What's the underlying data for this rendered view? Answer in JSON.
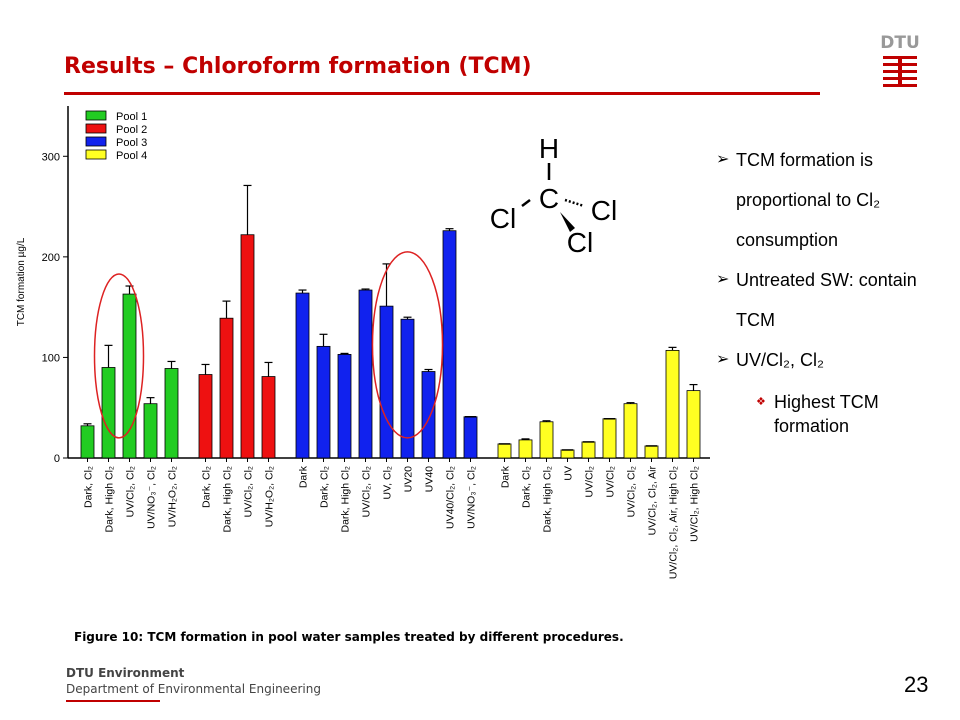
{
  "slide": {
    "title": "Results – Chloroform formation (TCM)",
    "caption": "Figure 10: TCM formation in pool water samples treated by different procedures.",
    "footer_org": "DTU Environment",
    "footer_dept": "Department of Environmental Engineering",
    "page_number": "23",
    "logo_text": "DTU",
    "accent_color": "#c00000"
  },
  "bullets": [
    {
      "text": "TCM formation is proportional to Cl₂ consumption"
    },
    {
      "text": "Untreated SW: contain TCM"
    },
    {
      "text": "UV/Cl₂, Cl₂"
    }
  ],
  "sub_bullet": "Highest TCM formation",
  "molecule": {
    "h": "H",
    "c": "C",
    "cl1": "Cl",
    "cl2": "Cl",
    "cl3": "Cl"
  },
  "chart_data": {
    "type": "bar",
    "ylabel": "TCM formation µg/L",
    "ylim": [
      0,
      350
    ],
    "yticks": [
      0,
      100,
      200,
      300
    ],
    "legend": [
      {
        "name": "Pool 1",
        "color": "#22cc22"
      },
      {
        "name": "Pool 2",
        "color": "#ee1111"
      },
      {
        "name": "Pool 3",
        "color": "#1122ee"
      },
      {
        "name": "Pool 4",
        "color": "#ffff22"
      }
    ],
    "groups": [
      {
        "pool": "Pool 1",
        "bars": [
          {
            "label": "Dark, Cl2",
            "value": 32,
            "err": 2
          },
          {
            "label": "Dark, High Cl2",
            "value": 90,
            "err": 22
          },
          {
            "label": "UV/Cl2, Cl2",
            "value": 163,
            "err": 8
          },
          {
            "label": "UV/NO3-, Cl2",
            "value": 54,
            "err": 6
          },
          {
            "label": "UV/H2O2, Cl2",
            "value": 89,
            "err": 7
          }
        ]
      },
      {
        "pool": "Pool 2",
        "bars": [
          {
            "label": "Dark, Cl2",
            "value": 83,
            "err": 10
          },
          {
            "label": "Dark, High Cl2",
            "value": 139,
            "err": 17
          },
          {
            "label": "UV/Cl2, Cl2",
            "value": 222,
            "err": 49
          },
          {
            "label": "UV/H2O2, Cl2",
            "value": 81,
            "err": 14
          }
        ]
      },
      {
        "pool": "Pool 3",
        "bars": [
          {
            "label": "Dark",
            "value": 164,
            "err": 3
          },
          {
            "label": "Dark, Cl2",
            "value": 111,
            "err": 12
          },
          {
            "label": "Dark, High Cl2",
            "value": 103,
            "err": 1
          },
          {
            "label": "UV/Cl2, Cl2",
            "value": 167,
            "err": 1
          },
          {
            "label": "UV, Cl2",
            "value": 151,
            "err": 42
          },
          {
            "label": "UV20",
            "value": 138,
            "err": 2
          },
          {
            "label": "UV40",
            "value": 86,
            "err": 2
          },
          {
            "label": "UV40/Cl2, Cl2",
            "value": 226,
            "err": 2
          },
          {
            "label": "UV/NO3-, Cl2",
            "value": 41,
            "err": 0
          }
        ]
      },
      {
        "pool": "Pool 4",
        "bars": [
          {
            "label": "Dark",
            "value": 14,
            "err": 0
          },
          {
            "label": "Dark, Cl2",
            "value": 18,
            "err": 1
          },
          {
            "label": "Dark, High Cl2",
            "value": 36,
            "err": 1
          },
          {
            "label": "UV",
            "value": 8,
            "err": 0
          },
          {
            "label": "UV/Cl2",
            "value": 16,
            "err": 0
          },
          {
            "label": "UV/Cl2",
            "value": 39,
            "err": 0
          },
          {
            "label": "UV/Cl2, Cl2",
            "value": 54,
            "err": 1
          },
          {
            "label": "UV/Cl2, Cl2, Air",
            "value": 12,
            "err": 0
          },
          {
            "label": "UV/Cl2, Cl2, Air, High Cl2",
            "value": 107,
            "err": 3
          },
          {
            "label": "UV/Cl2, High Cl2",
            "value": 67,
            "err": 6
          }
        ]
      }
    ],
    "highlight_groups": [
      {
        "pool_index": 0,
        "bars": [
          1,
          2
        ]
      },
      {
        "pool_index": 2,
        "bars": [
          4,
          5,
          6
        ]
      }
    ]
  }
}
